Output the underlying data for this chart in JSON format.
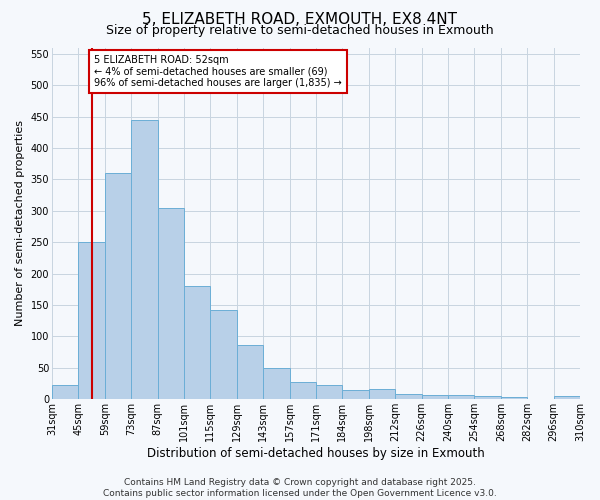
{
  "title": "5, ELIZABETH ROAD, EXMOUTH, EX8 4NT",
  "subtitle": "Size of property relative to semi-detached houses in Exmouth",
  "xlabel": "Distribution of semi-detached houses by size in Exmouth",
  "ylabel": "Number of semi-detached properties",
  "categories": [
    "31sqm",
    "45sqm",
    "59sqm",
    "73sqm",
    "87sqm",
    "101sqm",
    "115sqm",
    "129sqm",
    "143sqm",
    "157sqm",
    "171sqm",
    "184sqm",
    "198sqm",
    "212sqm",
    "226sqm",
    "240sqm",
    "254sqm",
    "268sqm",
    "282sqm",
    "296sqm",
    "310sqm"
  ],
  "bar_values": [
    22,
    250,
    360,
    445,
    305,
    180,
    142,
    87,
    50,
    27,
    22,
    15,
    17,
    9,
    7,
    7,
    6,
    4,
    1,
    6,
    0
  ],
  "bar_color": "#b8d0e8",
  "bar_edge_color": "#6baed6",
  "ylim": [
    0,
    560
  ],
  "yticks": [
    0,
    50,
    100,
    150,
    200,
    250,
    300,
    350,
    400,
    450,
    500,
    550
  ],
  "red_line_x": 1.5,
  "annotation_title": "5 ELIZABETH ROAD: 52sqm",
  "annotation_line1": "← 4% of semi-detached houses are smaller (69)",
  "annotation_line2": "96% of semi-detached houses are larger (1,835) →",
  "annotation_box_color": "#ffffff",
  "annotation_border_color": "#cc0000",
  "vline_color": "#cc0000",
  "grid_color": "#c8d4e0",
  "background_color": "#f5f8fc",
  "footer_line1": "Contains HM Land Registry data © Crown copyright and database right 2025.",
  "footer_line2": "Contains public sector information licensed under the Open Government Licence v3.0.",
  "title_fontsize": 11,
  "subtitle_fontsize": 9,
  "xlabel_fontsize": 8.5,
  "ylabel_fontsize": 8,
  "tick_fontsize": 7,
  "footer_fontsize": 6.5
}
